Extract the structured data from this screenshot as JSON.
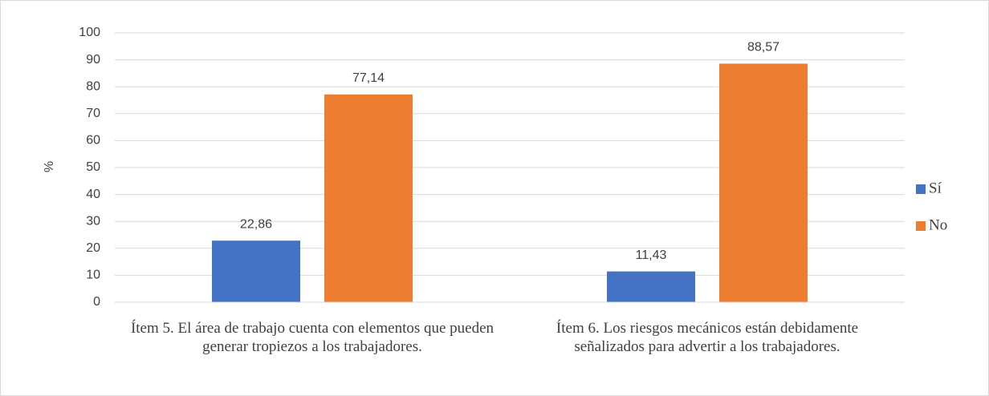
{
  "chart_data": {
    "type": "bar",
    "categories": [
      "Ítem 5. El área de trabajo cuenta con elementos que pueden generar tropiezos a los trabajadores.",
      "Ítem 6. Los riesgos mecánicos están debidamente señalizados para advertir a los trabajadores."
    ],
    "series": [
      {
        "name": "Sí",
        "color": "#4472c4",
        "values": [
          22.86,
          11.43
        ],
        "value_labels": [
          "22,86",
          "11,43"
        ]
      },
      {
        "name": "No",
        "color": "#ed7d31",
        "values": [
          77.14,
          88.57
        ],
        "value_labels": [
          "77,14",
          "88,57"
        ]
      }
    ],
    "ylabel": "%",
    "ylim": [
      0,
      100
    ],
    "yticks": [
      0,
      10,
      20,
      30,
      40,
      50,
      60,
      70,
      80,
      90,
      100
    ],
    "grid": true,
    "legend": "right"
  }
}
